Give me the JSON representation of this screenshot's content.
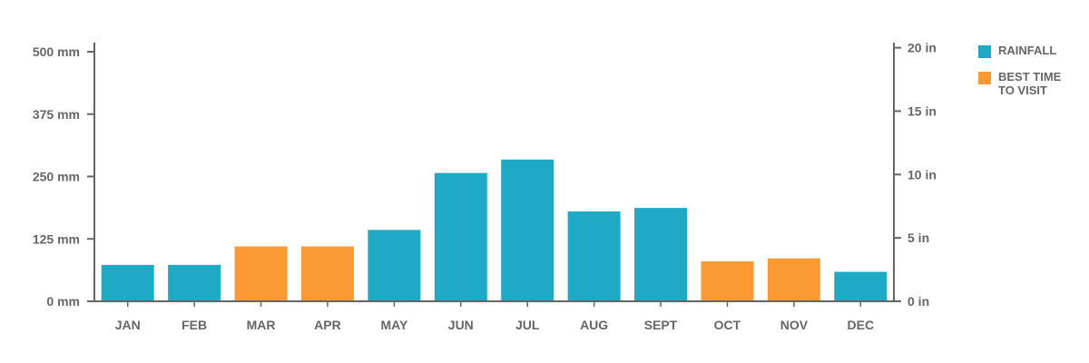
{
  "chart_data": {
    "type": "bar",
    "categories": [
      "JAN",
      "FEB",
      "MAR",
      "APR",
      "MAY",
      "JUN",
      "JUL",
      "AUG",
      "SEPT",
      "OCT",
      "NOV",
      "DEC"
    ],
    "values": [
      73,
      73,
      110,
      110,
      143,
      257,
      284,
      180,
      187,
      80,
      86,
      59
    ],
    "best_time": [
      false,
      false,
      true,
      true,
      false,
      false,
      false,
      false,
      false,
      true,
      true,
      false
    ],
    "ylim": [
      0,
      500
    ],
    "y_left_ticks": [
      0,
      125,
      250,
      375,
      500
    ],
    "y_left_tick_labels": [
      "0 mm",
      "125 mm",
      "250 mm",
      "375 mm",
      "500 mm"
    ],
    "y_right_ticks_in": [
      0,
      5,
      10,
      15,
      20
    ],
    "y_right_tick_labels": [
      "0 in",
      "5 in",
      "10 in",
      "15 in",
      "20 in"
    ],
    "legend": [
      {
        "label": "RAINFALL",
        "color": "#1eaac4"
      },
      {
        "label": "BEST TIME TO VISIT",
        "color": "#fb9a32"
      }
    ],
    "legend_position": "right",
    "grid": false,
    "colors": {
      "rainfall": "#1eaac4",
      "best_time": "#fb9a32",
      "axis": "#666666"
    }
  }
}
